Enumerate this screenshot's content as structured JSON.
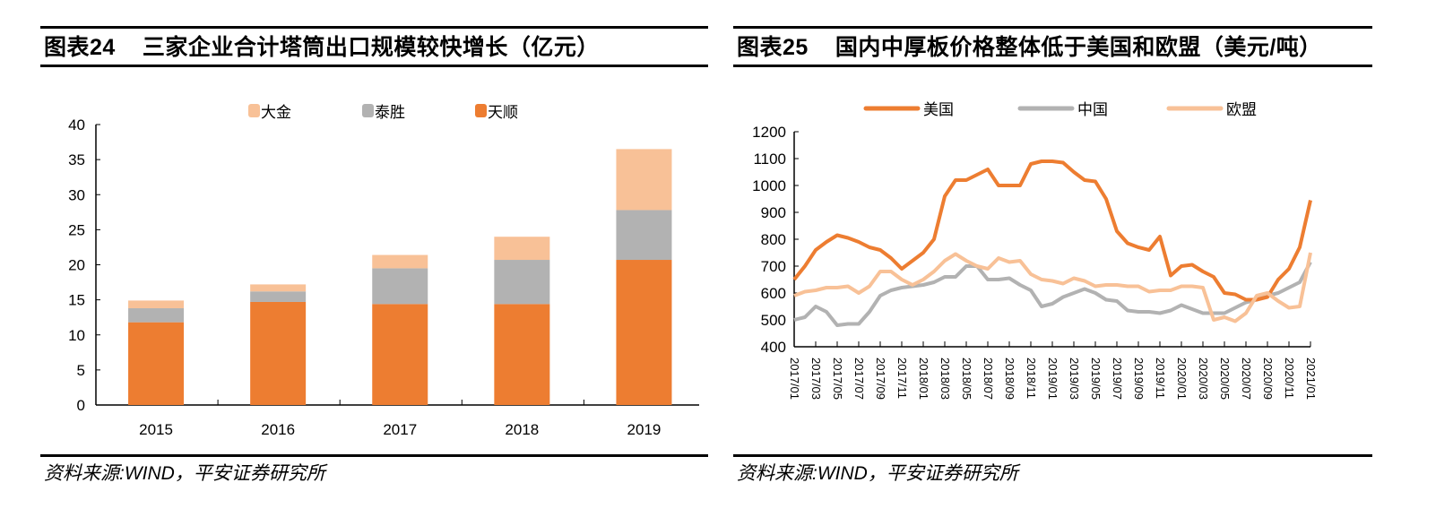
{
  "left": {
    "title_prefix": "图表24",
    "title": "三家企业合计塔筒出口规模较快增长（亿元）",
    "source": "资料来源:WIND，平安证券研究所"
  },
  "right": {
    "title_prefix": "图表25",
    "title": "国内中厚板价格整体低于美国和欧盟（美元/吨）",
    "source": "资料来源:WIND，平安证券研究所"
  },
  "chart_data": [
    {
      "type": "bar",
      "stacked": true,
      "categories": [
        "2015",
        "2016",
        "2017",
        "2018",
        "2019"
      ],
      "ylim": [
        0,
        40
      ],
      "yticks": [
        0,
        5,
        10,
        15,
        20,
        25,
        30,
        35,
        40
      ],
      "legend_position": "top",
      "grid": false,
      "series": [
        {
          "name": "天顺",
          "color": "#ED7D31",
          "values": [
            11.8,
            14.7,
            14.4,
            14.4,
            20.7
          ]
        },
        {
          "name": "泰胜",
          "color": "#B2B2B2",
          "values": [
            2.0,
            1.5,
            5.1,
            6.3,
            7.1
          ]
        },
        {
          "name": "大金",
          "color": "#F8C197",
          "values": [
            1.1,
            1.0,
            1.9,
            3.3,
            8.7
          ]
        }
      ],
      "legend_order": [
        "大金",
        "泰胜",
        "天顺"
      ]
    },
    {
      "type": "line",
      "ylim": [
        400,
        1200
      ],
      "yticks": [
        400,
        500,
        600,
        700,
        800,
        900,
        1000,
        1100,
        1200
      ],
      "xticks": [
        "2017/01",
        "2017/03",
        "2017/05",
        "2017/07",
        "2017/09",
        "2017/11",
        "2018/01",
        "2018/03",
        "2018/05",
        "2018/07",
        "2018/09",
        "2018/11",
        "2019/01",
        "2019/03",
        "2019/05",
        "2019/07",
        "2019/09",
        "2019/11",
        "2020/01",
        "2020/03",
        "2020/05",
        "2020/07",
        "2020/09",
        "2020/11",
        "2021/01"
      ],
      "x": [
        "2017/01",
        "2017/02",
        "2017/03",
        "2017/04",
        "2017/05",
        "2017/06",
        "2017/07",
        "2017/08",
        "2017/09",
        "2017/10",
        "2017/11",
        "2017/12",
        "2018/01",
        "2018/02",
        "2018/03",
        "2018/04",
        "2018/05",
        "2018/06",
        "2018/07",
        "2018/08",
        "2018/09",
        "2018/10",
        "2018/11",
        "2018/12",
        "2019/01",
        "2019/02",
        "2019/03",
        "2019/04",
        "2019/05",
        "2019/06",
        "2019/07",
        "2019/08",
        "2019/09",
        "2019/10",
        "2019/11",
        "2019/12",
        "2020/01",
        "2020/02",
        "2020/03",
        "2020/04",
        "2020/05",
        "2020/06",
        "2020/07",
        "2020/08",
        "2020/09",
        "2020/10",
        "2020/11",
        "2020/12",
        "2021/01"
      ],
      "legend_position": "top",
      "grid": false,
      "series": [
        {
          "name": "美国",
          "color": "#ED7D31",
          "values": [
            650,
            700,
            760,
            790,
            815,
            805,
            790,
            770,
            760,
            730,
            690,
            720,
            750,
            800,
            960,
            1020,
            1020,
            1040,
            1060,
            1000,
            1000,
            1000,
            1080,
            1090,
            1090,
            1085,
            1050,
            1020,
            1015,
            950,
            830,
            785,
            770,
            760,
            810,
            665,
            700,
            705,
            680,
            660,
            600,
            595,
            575,
            575,
            585,
            650,
            690,
            770,
            945
          ]
        },
        {
          "name": "中国",
          "color": "#B2B2B2",
          "values": [
            500,
            510,
            550,
            530,
            480,
            485,
            485,
            530,
            590,
            610,
            620,
            625,
            630,
            640,
            660,
            660,
            700,
            700,
            650,
            650,
            655,
            630,
            610,
            550,
            560,
            585,
            600,
            615,
            600,
            575,
            570,
            535,
            530,
            530,
            525,
            535,
            555,
            540,
            525,
            525,
            525,
            545,
            565,
            575,
            590,
            600,
            620,
            640,
            715
          ]
        },
        {
          "name": "欧盟",
          "color": "#F8C197",
          "values": [
            590,
            605,
            610,
            620,
            620,
            625,
            600,
            625,
            680,
            680,
            650,
            630,
            650,
            680,
            720,
            745,
            720,
            700,
            690,
            730,
            715,
            720,
            670,
            650,
            645,
            635,
            655,
            645,
            625,
            630,
            630,
            625,
            625,
            605,
            610,
            610,
            625,
            625,
            620,
            500,
            510,
            495,
            525,
            590,
            600,
            570,
            545,
            550,
            750
          ]
        }
      ]
    }
  ]
}
